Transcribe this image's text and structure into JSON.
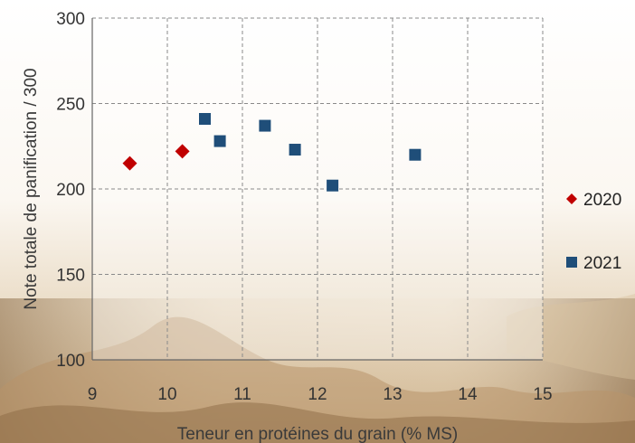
{
  "chart_data": {
    "type": "scatter",
    "xlabel": "Teneur en protéines du grain (% MS)",
    "ylabel": "Note totale de panification / 300",
    "xlim": [
      9,
      15
    ],
    "ylim": [
      100,
      300
    ],
    "x_ticks": [
      9,
      10,
      11,
      12,
      13,
      14,
      15
    ],
    "y_ticks": [
      100,
      150,
      200,
      250,
      300
    ],
    "grid": true,
    "legend_position": "right",
    "series": [
      {
        "name": "2020",
        "marker": "diamond",
        "color": "#c00000",
        "points": [
          {
            "x": 9.5,
            "y": 215
          },
          {
            "x": 10.2,
            "y": 222
          }
        ]
      },
      {
        "name": "2021",
        "marker": "square",
        "color": "#1f4e79",
        "points": [
          {
            "x": 10.5,
            "y": 241
          },
          {
            "x": 10.7,
            "y": 228
          },
          {
            "x": 11.3,
            "y": 237
          },
          {
            "x": 11.7,
            "y": 223
          },
          {
            "x": 12.2,
            "y": 202
          },
          {
            "x": 13.3,
            "y": 220
          }
        ]
      }
    ]
  }
}
